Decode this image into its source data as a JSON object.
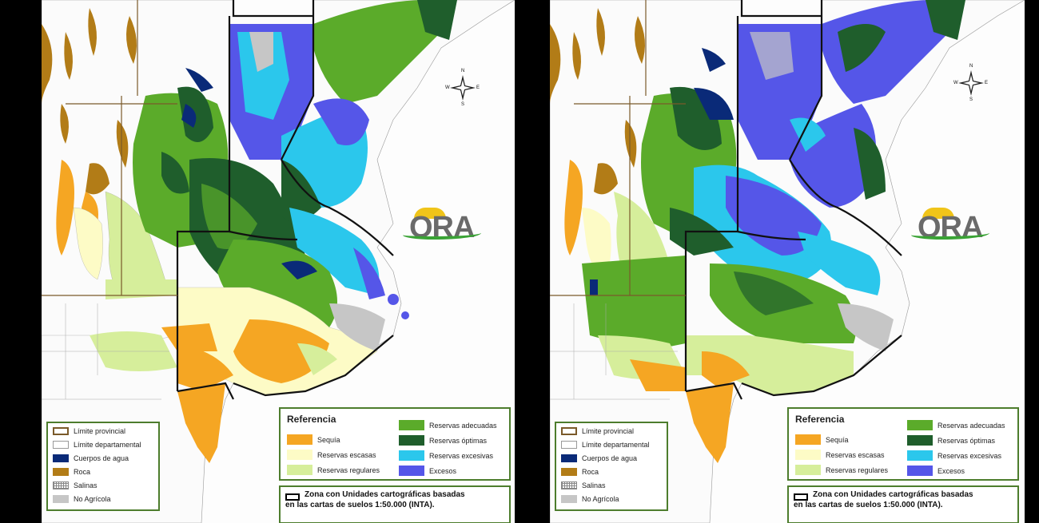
{
  "colors": {
    "sequia": "#f5a623",
    "escasas": "#fdfbc6",
    "regulares": "#d6ee9b",
    "adecuadas": "#5bab2a",
    "optimas": "#1f5e2c",
    "excesivas": "#2bc7ec",
    "excesos": "#5556e8",
    "agua": "#0a2a78",
    "roca": "#b27c17",
    "no_agricola": "#c6c6c6",
    "border": "#4d7d2d"
  },
  "maps": [
    {
      "id": "left",
      "compass": {
        "n": "N",
        "s": "S",
        "w": "W",
        "e": "E"
      },
      "logo": "ORA",
      "small_legend": [
        {
          "label": "Límite provincial",
          "type": "provincial"
        },
        {
          "label": "Límite departamental",
          "type": "departamental"
        },
        {
          "label": "Cuerpos de agua",
          "type": "agua"
        },
        {
          "label": "Roca",
          "type": "roca"
        },
        {
          "label": "Salinas",
          "type": "salinas"
        },
        {
          "label": "No Agrícola",
          "type": "no_agricola"
        }
      ],
      "reference": {
        "title": "Referencia",
        "left_col": [
          {
            "label": "Sequía",
            "type": "sequia"
          },
          {
            "label": "Reservas escasas",
            "type": "escasas"
          },
          {
            "label": "Reservas regulares",
            "type": "regulares"
          }
        ],
        "right_col": [
          {
            "label": "Reservas adecuadas",
            "type": "adecuadas"
          },
          {
            "label": "Reservas óptimas",
            "type": "optimas"
          },
          {
            "label": "Reservas excesivas",
            "type": "excesivas"
          },
          {
            "label": "Excesos",
            "type": "excesos"
          }
        ]
      },
      "zone": {
        "line1": "Zona con Unidades cartográficas basadas",
        "line2": "en las cartas de suelos 1:50.000 (INTA)."
      }
    },
    {
      "id": "right",
      "compass": {
        "n": "N",
        "s": "S",
        "w": "W",
        "e": "E"
      },
      "logo": "ORA",
      "small_legend": [
        {
          "label": "Límite provincial",
          "type": "provincial"
        },
        {
          "label": "Límite departamental",
          "type": "departamental"
        },
        {
          "label": "Cuerpos de agua",
          "type": "agua"
        },
        {
          "label": "Roca",
          "type": "roca"
        },
        {
          "label": "Salinas",
          "type": "salinas"
        },
        {
          "label": "No Agrícola",
          "type": "no_agricola"
        }
      ],
      "reference": {
        "title": "Referencia",
        "left_col": [
          {
            "label": "Sequía",
            "type": "sequia"
          },
          {
            "label": "Reservas escasas",
            "type": "escasas"
          },
          {
            "label": "Reservas regulares",
            "type": "regulares"
          }
        ],
        "right_col": [
          {
            "label": "Reservas adecuadas",
            "type": "adecuadas"
          },
          {
            "label": "Reservas óptimas",
            "type": "optimas"
          },
          {
            "label": "Reservas excesivas",
            "type": "excesivas"
          },
          {
            "label": "Excesos",
            "type": "excesos"
          }
        ]
      },
      "zone": {
        "line1": "Zona con Unidades cartográficas basadas",
        "line2": "en las cartas de suelos 1:50.000 (INTA)."
      }
    }
  ]
}
